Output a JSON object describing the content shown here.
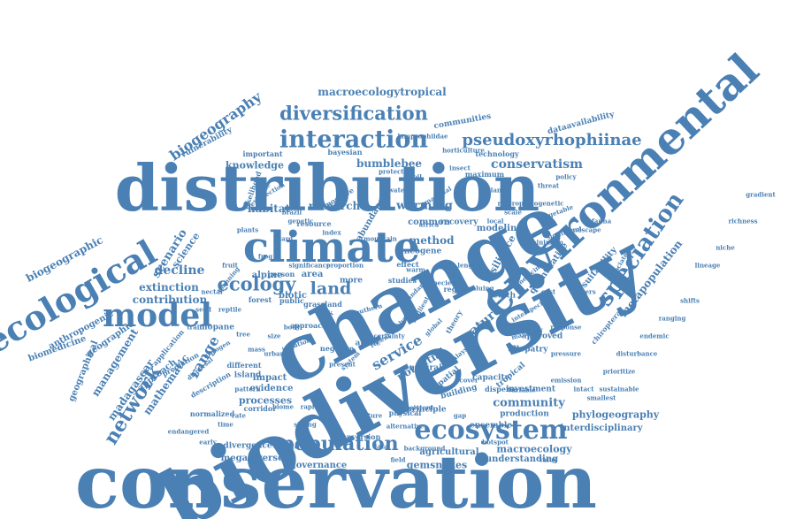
{
  "colors": {
    "word": "#4a80b4",
    "background": "#ffffff"
  },
  "words": [
    {
      "text": "conservation"
    },
    {
      "text": "biodiversity"
    },
    {
      "text": "change"
    },
    {
      "text": "distribution"
    },
    {
      "text": "environmental"
    },
    {
      "text": "climate"
    },
    {
      "text": "model"
    },
    {
      "text": "ecological"
    },
    {
      "text": "ecosystem"
    },
    {
      "text": "interaction"
    },
    {
      "text": "speciation"
    },
    {
      "text": "diversification"
    },
    {
      "text": "pseudoxyrhophiinae"
    },
    {
      "text": "network"
    },
    {
      "text": "population"
    },
    {
      "text": "ecology"
    },
    {
      "text": "land"
    },
    {
      "text": "biogeography"
    },
    {
      "text": "service"
    },
    {
      "text": "nature"
    },
    {
      "text": "conservatism"
    },
    {
      "text": "macroecologytropical"
    },
    {
      "text": "biogeographic"
    },
    {
      "text": "scenario"
    },
    {
      "text": "decline"
    },
    {
      "text": "research"
    },
    {
      "text": "potential"
    },
    {
      "text": "metapopulation"
    },
    {
      "text": "community"
    },
    {
      "text": "range"
    },
    {
      "text": "bumblebee"
    },
    {
      "text": "knowledge"
    },
    {
      "text": "warming"
    },
    {
      "text": "method"
    },
    {
      "text": "habitat"
    },
    {
      "text": "madagascar"
    },
    {
      "text": "mathematic"
    },
    {
      "text": "extinction"
    },
    {
      "text": "contribution"
    },
    {
      "text": "science"
    },
    {
      "text": "common"
    },
    {
      "text": "modeling"
    },
    {
      "text": "resilience"
    },
    {
      "text": "quantitative"
    },
    {
      "text": "suitability"
    },
    {
      "text": "phylogeography"
    },
    {
      "text": "interdisciplinary"
    },
    {
      "text": "macroecology"
    },
    {
      "text": "understanding"
    },
    {
      "text": "agricultural"
    },
    {
      "text": "gemsnakes"
    },
    {
      "text": "governance"
    },
    {
      "text": "megadiverse"
    },
    {
      "text": "divergence"
    },
    {
      "text": "processes"
    },
    {
      "text": "evidence"
    },
    {
      "text": "impact"
    },
    {
      "text": "management"
    },
    {
      "text": "geographic"
    },
    {
      "text": "anthropogenic"
    },
    {
      "text": "biomedicine"
    },
    {
      "text": "approach"
    },
    {
      "text": "geographical"
    },
    {
      "text": "vulnerability"
    },
    {
      "text": "important"
    },
    {
      "text": "bayesian"
    },
    {
      "text": "dataavailability"
    },
    {
      "text": "technology"
    },
    {
      "text": "communities"
    },
    {
      "text": "maximum"
    },
    {
      "text": "protected"
    },
    {
      "text": "abundance"
    },
    {
      "text": "recovery"
    },
    {
      "text": "significant"
    },
    {
      "text": "minimum"
    },
    {
      "text": "neogene"
    },
    {
      "text": "effect"
    },
    {
      "text": "mopane"
    },
    {
      "text": "prediction"
    },
    {
      "text": "biotic"
    },
    {
      "text": "alpine"
    },
    {
      "text": "area"
    },
    {
      "text": "more"
    },
    {
      "text": "arctic"
    },
    {
      "text": "natural"
    },
    {
      "text": "spatial"
    },
    {
      "text": "tropical"
    },
    {
      "text": "allopatry"
    },
    {
      "text": "approved"
    },
    {
      "text": "health"
    },
    {
      "text": "capacity"
    },
    {
      "text": "dispersa"
    },
    {
      "text": "investment"
    },
    {
      "text": "production"
    },
    {
      "text": "ensemble"
    },
    {
      "text": "principle"
    },
    {
      "text": "building"
    },
    {
      "text": "conversion"
    },
    {
      "text": "island"
    },
    {
      "text": "different"
    },
    {
      "text": "corridor"
    },
    {
      "text": "normalized"
    },
    {
      "text": "description"
    },
    {
      "text": "endangered"
    },
    {
      "text": "application"
    },
    {
      "text": "forest"
    },
    {
      "text": "region"
    },
    {
      "text": "chiroptera"
    },
    {
      "text": "medicinal"
    },
    {
      "text": "likelihood"
    },
    {
      "text": "extreme"
    },
    {
      "text": "selection"
    },
    {
      "text": "person"
    },
    {
      "text": "public"
    },
    {
      "text": "risk"
    },
    {
      "text": "physical"
    },
    {
      "text": "alternative"
    },
    {
      "text": "studies"
    },
    {
      "text": "theory"
    },
    {
      "text": "resource"
    },
    {
      "text": "valuing"
    },
    {
      "text": "horticulture"
    },
    {
      "text": "lamprophiidae"
    },
    {
      "text": "positive"
    },
    {
      "text": "negative"
    },
    {
      "text": "present"
    },
    {
      "text": "system"
    },
    {
      "text": "analysis"
    },
    {
      "text": "boundary"
    },
    {
      "text": "approach"
    },
    {
      "text": "africa"
    },
    {
      "text": "mammal"
    },
    {
      "text": "malagasy"
    },
    {
      "text": "uncertainty"
    },
    {
      "text": "grassland"
    },
    {
      "text": "tree"
    },
    {
      "text": "variable"
    },
    {
      "text": "background"
    },
    {
      "text": "consistent"
    },
    {
      "text": "planning"
    },
    {
      "text": "pattern"
    },
    {
      "text": "urban"
    },
    {
      "text": "dispersal"
    },
    {
      "text": "resilient"
    },
    {
      "text": "rapid"
    },
    {
      "text": "mountain"
    },
    {
      "text": "recent"
    },
    {
      "text": "global"
    },
    {
      "text": "species"
    },
    {
      "text": "index"
    },
    {
      "text": "genetic"
    },
    {
      "text": "isolation"
    },
    {
      "text": "warm"
    },
    {
      "text": "cover"
    },
    {
      "text": "length"
    },
    {
      "text": "malaysia"
    },
    {
      "text": "cost"
    },
    {
      "text": "drivers"
    },
    {
      "text": "response"
    },
    {
      "text": "interspecific"
    },
    {
      "text": "associated"
    },
    {
      "text": "pressure"
    },
    {
      "text": "plant"
    },
    {
      "text": "macrophylogenetic"
    },
    {
      "text": "vegetable"
    },
    {
      "text": "brazil"
    },
    {
      "text": "significance"
    },
    {
      "text": "proportion"
    },
    {
      "text": "southern"
    },
    {
      "text": "reptile"
    },
    {
      "text": "nitrogen"
    },
    {
      "text": "biome"
    },
    {
      "text": "strong"
    },
    {
      "text": "future"
    },
    {
      "text": "gap"
    },
    {
      "text": "hotspot"
    },
    {
      "text": "emission"
    },
    {
      "text": "intact"
    },
    {
      "text": "smallest"
    },
    {
      "text": "prioritize"
    },
    {
      "text": "sustainable"
    },
    {
      "text": "disturbance"
    },
    {
      "text": "endemic"
    },
    {
      "text": "ranging"
    },
    {
      "text": "shifts"
    },
    {
      "text": "lineage"
    },
    {
      "text": "niche"
    },
    {
      "text": "richness"
    },
    {
      "text": "gradient"
    },
    {
      "text": "landscape"
    },
    {
      "text": "fauna"
    },
    {
      "text": "threat"
    },
    {
      "text": "policy"
    },
    {
      "text": "scale"
    },
    {
      "text": "local"
    },
    {
      "text": "water"
    },
    {
      "text": "soil"
    },
    {
      "text": "insect"
    },
    {
      "text": "lizard"
    },
    {
      "text": "frog"
    },
    {
      "text": "plants"
    },
    {
      "text": "fruit"
    },
    {
      "text": "nectar"
    },
    {
      "text": "seed"
    },
    {
      "text": "trait"
    },
    {
      "text": "body"
    },
    {
      "text": "size"
    },
    {
      "text": "mass"
    },
    {
      "text": "rate"
    },
    {
      "text": "time"
    },
    {
      "text": "early"
    },
    {
      "text": "late"
    },
    {
      "text": "data"
    },
    {
      "text": "field"
    },
    {
      "text": "value"
    },
    {
      "text": "scheme"
    },
    {
      "text": "impacts"
    },
    {
      "text": "assessment"
    },
    {
      "text": "effects"
    },
    {
      "text": "realm"
    },
    {
      "text": "birds"
    },
    {
      "text": "marine"
    },
    {
      "text": "tools"
    },
    {
      "text": "survey"
    },
    {
      "text": "metrics"
    },
    {
      "text": "origin"
    },
    {
      "text": "loss"
    },
    {
      "text": "gain"
    },
    {
      "text": "bats"
    },
    {
      "text": "snake"
    }
  ]
}
